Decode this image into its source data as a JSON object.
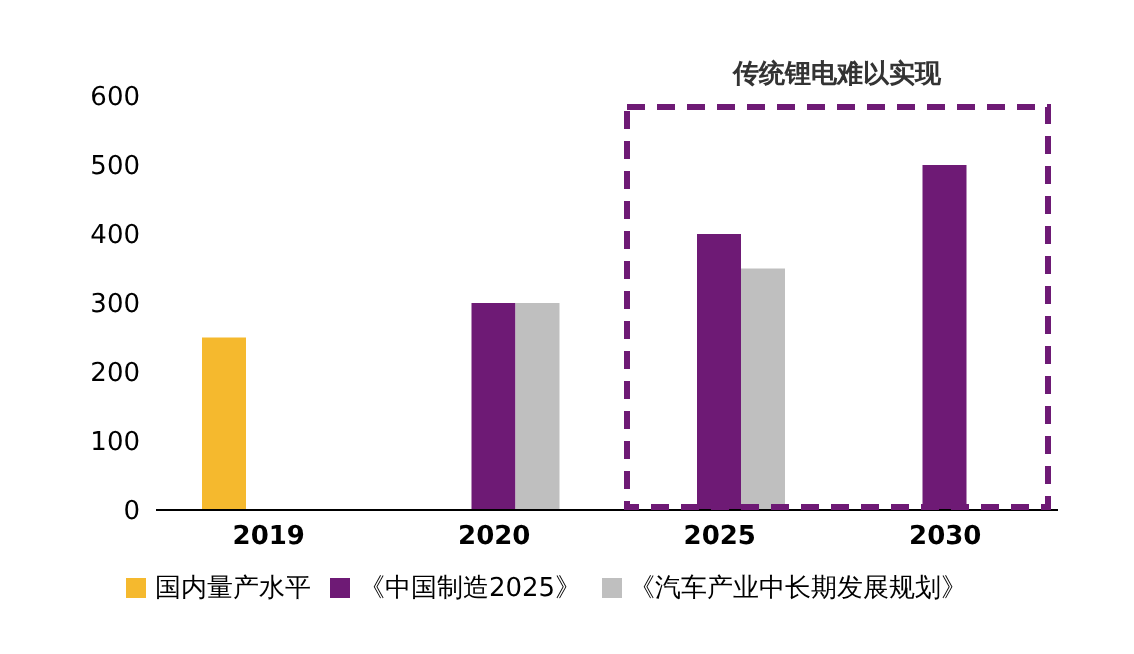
{
  "chart_data": {
    "type": "bar",
    "categories": [
      "2019",
      "2020",
      "2025",
      "2030"
    ],
    "series": [
      {
        "name": "国内量产水平",
        "color": "#f5b92e",
        "values": [
          250,
          null,
          null,
          null
        ]
      },
      {
        "name": "《中国制造2025》",
        "color": "#6e1a75",
        "values": [
          null,
          300,
          400,
          500
        ]
      },
      {
        "name": "《汽车产业中长期发展规划》",
        "color": "#bfbfbf",
        "values": [
          null,
          300,
          350,
          null
        ]
      }
    ],
    "ylim": [
      0,
      600
    ],
    "yticks": [
      0,
      100,
      200,
      300,
      400,
      500,
      600
    ],
    "legend": "bottom",
    "annotations": [
      "传统锂电难以实现"
    ]
  }
}
